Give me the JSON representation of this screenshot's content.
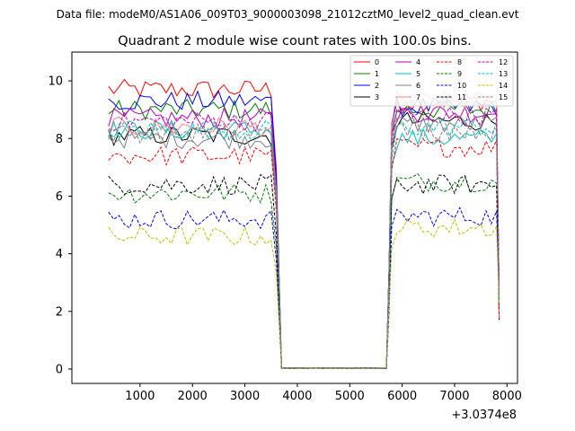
{
  "header": {
    "data_file": "Data file: modeM0/AS1A06_009T03_9000003098_21012cztM0_level2_quad_clean.evt"
  },
  "chart_data": {
    "type": "line",
    "title": "Quadrant 2 module wise count rates with 100.0s bins.",
    "xlabel": "",
    "ylabel": "",
    "x_offset_label": "+3.0374e8",
    "xlim": [
      -300,
      8200
    ],
    "ylim": [
      -0.5,
      11.0
    ],
    "xticks": [
      1000,
      2000,
      3000,
      4000,
      5000,
      6000,
      7000,
      8000
    ],
    "yticks": [
      0,
      2,
      4,
      6,
      8,
      10
    ],
    "grid": false,
    "legend": {
      "placement": "top-right",
      "ncol": 4
    },
    "series": [
      {
        "name": "0",
        "color": "#ff0000",
        "dash": "solid",
        "base1": 9.7,
        "base2": 9.3
      },
      {
        "name": "1",
        "color": "#008000",
        "dash": "solid",
        "base1": 9.0,
        "base2": 9.0
      },
      {
        "name": "2",
        "color": "#0000ff",
        "dash": "solid",
        "base1": 9.3,
        "base2": 9.1
      },
      {
        "name": "3",
        "color": "#000000",
        "dash": "solid",
        "base1": 8.1,
        "base2": 8.6
      },
      {
        "name": "4",
        "color": "#bf00bf",
        "dash": "solid",
        "base1": 8.7,
        "base2": 8.9
      },
      {
        "name": "5",
        "color": "#00bfbf",
        "dash": "solid",
        "base1": 8.3,
        "base2": 8.0
      },
      {
        "name": "6",
        "color": "#808080",
        "dash": "solid",
        "base1": 8.0,
        "base2": 8.5
      },
      {
        "name": "7",
        "color": "#ff7f7f",
        "dash": "solid",
        "base1": 8.4,
        "base2": 9.3
      },
      {
        "name": "8",
        "color": "#ff0000",
        "dash": "dashed",
        "base1": 7.4,
        "base2": 7.7
      },
      {
        "name": "9",
        "color": "#008000",
        "dash": "dashed",
        "base1": 6.1,
        "base2": 6.5
      },
      {
        "name": "10",
        "color": "#0000ff",
        "dash": "dashed",
        "base1": 5.2,
        "base2": 5.3
      },
      {
        "name": "11",
        "color": "#000000",
        "dash": "dashed",
        "base1": 6.4,
        "base2": 6.4
      },
      {
        "name": "12",
        "color": "#bf00bf",
        "dash": "dashed",
        "base1": 8.6,
        "base2": 8.8
      },
      {
        "name": "13",
        "color": "#00bfbf",
        "dash": "dashed",
        "base1": 8.3,
        "base2": 8.4
      },
      {
        "name": "14",
        "color": "#bfbf00",
        "dash": "dashed",
        "base1": 4.6,
        "base2": 4.9
      },
      {
        "name": "15",
        "color": "#808080",
        "dash": "dashed",
        "base1": 8.2,
        "base2": 8.3
      }
    ],
    "segments": {
      "bin_width": 100,
      "active1": [
        400,
        3600
      ],
      "dropout": [
        3700,
        5700
      ],
      "active2": [
        5800,
        7800
      ],
      "ramp_start": 5750,
      "end_point": 7850
    }
  }
}
